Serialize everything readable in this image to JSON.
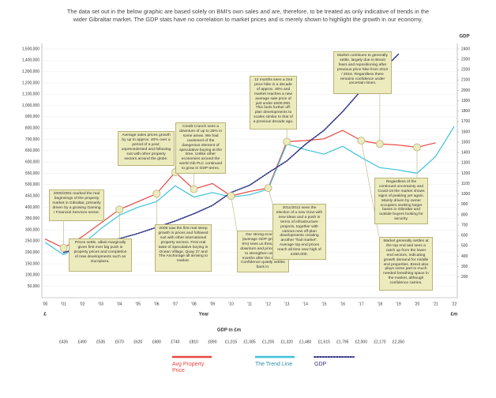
{
  "chart_data": {
    "type": "line",
    "title": "The data set out in the below graphic are based solely on BMI's own sales and are, therefore, to be treated as only indicative of trends in the wider Gibraltar market. The GDP stats have no correlation to market prices and is merely shown to highlight the growth in our economy.",
    "xlabel": "Year",
    "ylabel": "£",
    "y2label": "GDP",
    "y2unit": "£m",
    "gdp_row_title": "GDP in £m",
    "categories": [
      "'00",
      "'01",
      "'02",
      "'03",
      "'04",
      "'05",
      "'06",
      "'07",
      "'08",
      "'09",
      "'10",
      "'11",
      "'12",
      "'13",
      "'14",
      "'15",
      "'16",
      "'17",
      "'18",
      "'19",
      "'20",
      "'21",
      "'22"
    ],
    "series": [
      {
        "name": "Avg Property Price",
        "color": "#e8473f",
        "values": [
          260000,
          220000,
          270000,
          330000,
          390000,
          425000,
          460000,
          555000,
          480000,
          505000,
          450000,
          470000,
          485000,
          690000,
          695000,
          705000,
          780000,
          695000,
          680000,
          675000,
          665000,
          685000,
          null
        ]
      },
      {
        "name": "The Trend Line",
        "color": "#3ec1d9",
        "values": [
          245000,
          190000,
          235000,
          305000,
          365000,
          400000,
          425000,
          495000,
          445000,
          465000,
          445000,
          455000,
          480000,
          680000,
          655000,
          635000,
          670000,
          620000,
          575000,
          565000,
          550000,
          625000,
          815000
        ]
      },
      {
        "name": "GDP",
        "color": "#2e3283",
        "axis": "y2",
        "dashed": true,
        "values": [
          null,
          435,
          490,
          535,
          570,
          620,
          680,
          740,
          810,
          890,
          1015,
          1085,
          1205,
          1320,
          1480,
          1615,
          1795,
          2000,
          2170,
          2350,
          null,
          null,
          null
        ],
        "value_labels": [
          null,
          "£435",
          "£490",
          "£535",
          "£570",
          "£620",
          "£680",
          "£740",
          "£810",
          "£890",
          "£1,015",
          "£1,085",
          "£1,205",
          "£1,320",
          "£1,480",
          "£1,615",
          "£1,795",
          "£2,000",
          "£2,170",
          "£2,350",
          null,
          null,
          null
        ]
      }
    ],
    "ylim": [
      0,
      1500000
    ],
    "yticks": [
      {
        "value": 1500000,
        "label": "1,500,000"
      },
      {
        "value": 1400000,
        "label": "1,400,000"
      },
      {
        "value": 1300000,
        "label": "1,300,000"
      },
      {
        "value": 1200000,
        "label": "1,200,000"
      },
      {
        "value": 1100000,
        "label": "1,100,000"
      },
      {
        "value": 1000000,
        "label": "1,000,000"
      },
      {
        "value": 900000,
        "label": "900,000"
      },
      {
        "value": 800000,
        "label": "800,000"
      },
      {
        "value": 700000,
        "label": "700,000"
      },
      {
        "value": 650000,
        "label": "650,000"
      },
      {
        "value": 600000,
        "label": "600,000"
      },
      {
        "value": 550000,
        "label": "550,000"
      },
      {
        "value": 500000,
        "label": "500,000"
      },
      {
        "value": 450000,
        "label": "450,000"
      },
      {
        "value": 400000,
        "label": "400,000"
      },
      {
        "value": 350000,
        "label": "350,000"
      },
      {
        "value": 300000,
        "label": "300,000"
      },
      {
        "value": 250000,
        "label": "250,000"
      },
      {
        "value": 200000,
        "label": "200,000"
      },
      {
        "value": 150000,
        "label": "150,000"
      },
      {
        "value": 100000,
        "label": "100,000"
      },
      {
        "value": 50000,
        "label": "50,000"
      }
    ],
    "y2lim": [
      0,
      2400
    ],
    "y2ticks": [
      2400,
      2300,
      2200,
      2100,
      2000,
      1900,
      1800,
      1700,
      1600,
      1500,
      1400,
      1300,
      1200,
      1100,
      1000,
      900,
      800,
      700,
      600,
      500,
      400,
      300,
      200
    ],
    "grid": true,
    "annotations": [
      "2000/2001 marked the real beginnings of the property market in Gibraltar, primarily driven by a growing Gaming / Financial Services sector.",
      "Prices settle, albeit marginally given first ever big push in property prices and completion of new developments such as Europlaza.",
      "Average sales prices growth by up to approx. 40% over a period of a year; unprecedented and following suit with other property sectors around the globe.",
      "2006 saw the first real steep growth in prices and followed suit with other international property sectors. First real taste of speculative buying in Ocean Village, Quay 27 and The Anchorage all arriving to market.",
      "Credit Crunch sees a downturn of up to 25% in some areas. We had cautioned of the dangerous element of speculative buying at the time. Unlike other economies around the world Gib PLC continued to grow in GDP terms.",
      "Our strong economy (average GDP growth of 6%) sees us through the downturn and prices begin to strengthen only 18 months after the crunch. Confidence quietly settles back in.",
      "12 months sees a 2nd price hike in a decade of approx. 30% and market reaches a new average sale price of just under £600,000. This fuels further off-plan developments to scales similar to that of a previous decade ago.",
      "2011/2012 sees the election of a new Govt with new ideas and a push in terms of infrastructure projects, together with various new off-plan developments creating another \"frail market\". Average top end prices reach all time new high of £450,000.",
      "Market continues to generally settle, largely due to Brexit fears and repositioning after previous price hike from 2013 / 2016. Regardless there remains confidence under uncertain times.",
      "Regardless of the continued uncertainty and Covid-19 the market shows signs of peaking yet again. Mainly driven by owner occupiers seeking larger bases in Gibraltar and outside buyers looking for security.",
      "Market generally settles at the top end and sees a catch up from the lower end sectors, indicating growth demand for middle end properties. Brexit also plays some part in much needed breathing space in the market, although confidence carries."
    ]
  }
}
